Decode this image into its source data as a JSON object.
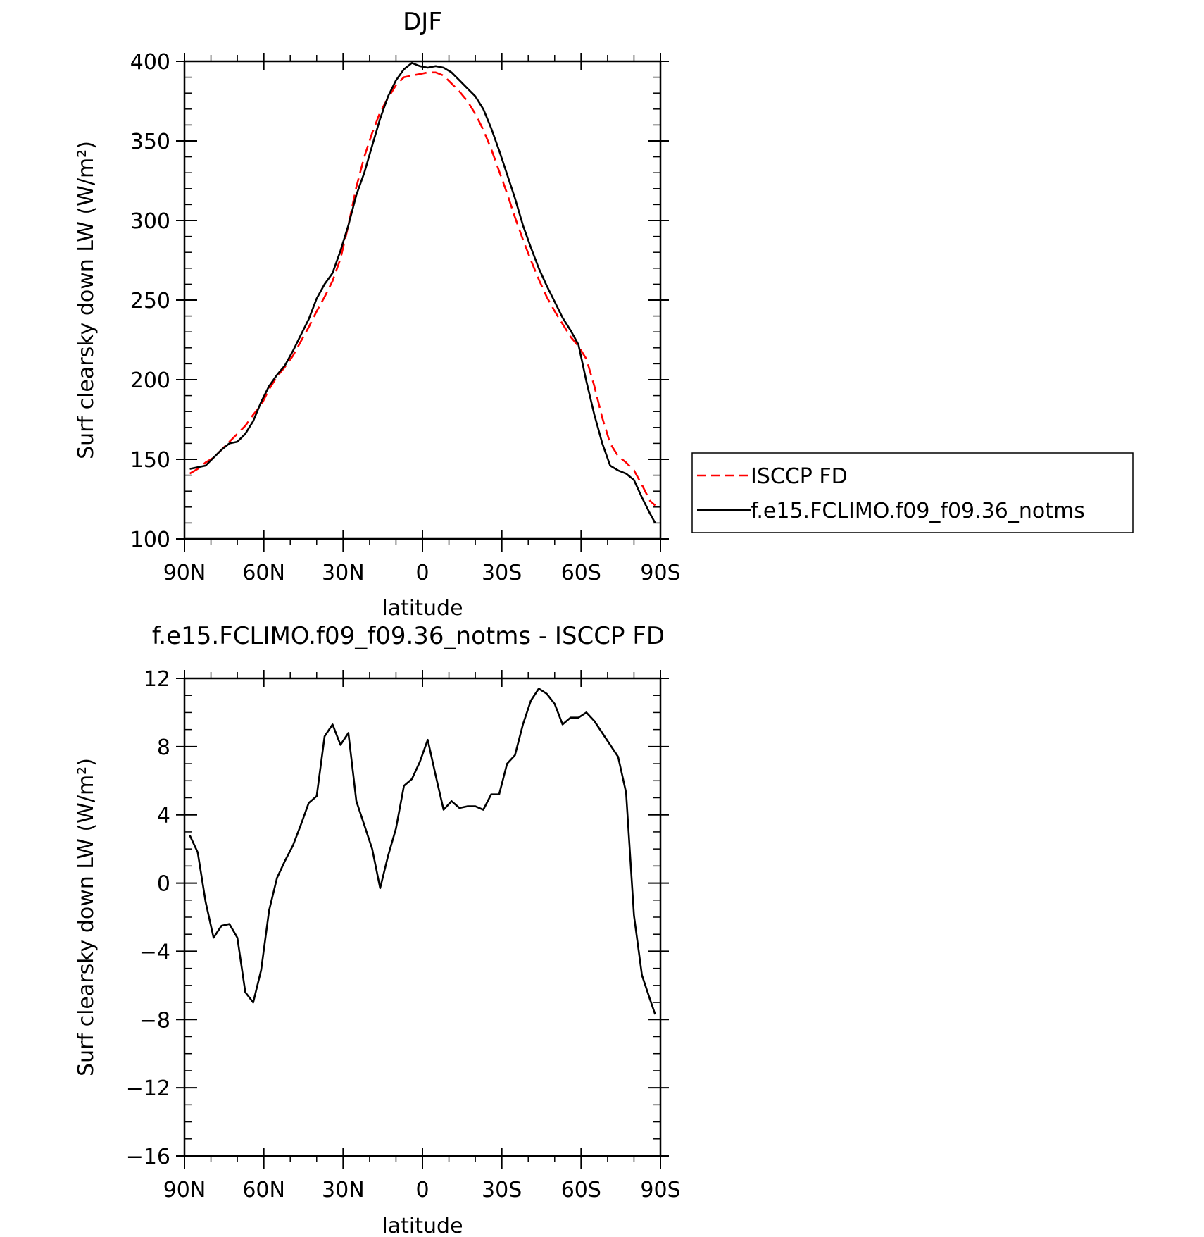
{
  "lat_tick_labels": [
    "90N",
    "60N",
    "30N",
    "0",
    "30S",
    "60S",
    "90S"
  ],
  "chart_data": [
    {
      "type": "line",
      "title": "DJF",
      "xlabel": "latitude",
      "ylabel": "Surf clearsky down LW (W/m²)",
      "xlim": [
        90,
        -90
      ],
      "ylim": [
        100,
        400
      ],
      "yticks": [
        100,
        150,
        200,
        250,
        300,
        350,
        400
      ],
      "ytick_labels": [
        "100",
        "150",
        "200",
        "250",
        "300",
        "350",
        "400"
      ],
      "legend": {
        "placement": "right",
        "entries": [
          "ISCCP FD",
          "f.e15.FCLIMO.f09_f09.36_notms"
        ]
      },
      "series": [
        {
          "name": "ISCCP FD",
          "color": "#ff0000",
          "dash": "dashed",
          "x": [
            88,
            85,
            82,
            79,
            76,
            73,
            70,
            67,
            64,
            61,
            58,
            55,
            52,
            49,
            46,
            43,
            40,
            37,
            34,
            31,
            28,
            25,
            22,
            19,
            16,
            13,
            10,
            7,
            4,
            1,
            -2,
            -5,
            -8,
            -11,
            -14,
            -17,
            -20,
            -23,
            -26,
            -29,
            -32,
            -35,
            -38,
            -41,
            -44,
            -47,
            -50,
            -53,
            -56,
            -59,
            -62,
            -65,
            -68,
            -71,
            -74,
            -77,
            -80,
            -83,
            -86,
            -88
          ],
          "values": [
            141,
            144,
            148,
            151,
            156,
            161,
            166,
            171,
            178,
            184,
            194,
            202,
            208,
            215,
            224,
            233,
            243,
            252,
            262,
            276,
            297,
            321,
            340,
            355,
            368,
            377,
            385,
            390,
            391,
            392,
            393,
            393,
            391,
            386,
            381,
            375,
            367,
            357,
            345,
            331,
            317,
            302,
            288,
            275,
            263,
            252,
            243,
            235,
            227,
            221,
            213,
            196,
            176,
            160,
            152,
            148,
            143,
            134,
            124,
            121
          ]
        },
        {
          "name": "f.e15.FCLIMO.f09_f09.36_notms",
          "color": "#000000",
          "dash": "solid",
          "x": [
            88,
            85,
            82,
            79,
            76,
            73,
            70,
            67,
            64,
            61,
            58,
            55,
            52,
            49,
            46,
            43,
            40,
            37,
            34,
            31,
            28,
            25,
            22,
            19,
            16,
            13,
            10,
            7,
            4,
            1,
            -2,
            -5,
            -8,
            -11,
            -14,
            -17,
            -20,
            -23,
            -26,
            -29,
            -32,
            -35,
            -38,
            -41,
            -44,
            -47,
            -50,
            -53,
            -56,
            -59,
            -62,
            -65,
            -68,
            -71,
            -74,
            -77,
            -80,
            -83,
            -86,
            -88
          ],
          "values": [
            144,
            145,
            146,
            151,
            156,
            160,
            161,
            166,
            174,
            186,
            196,
            203,
            209,
            218,
            228,
            238,
            251,
            260,
            267,
            281,
            297,
            316,
            330,
            347,
            364,
            378,
            388,
            395,
            399,
            397,
            396,
            397,
            396,
            393,
            388,
            383,
            378,
            370,
            358,
            344,
            329,
            314,
            297,
            283,
            270,
            259,
            249,
            239,
            231,
            222,
            199,
            178,
            160,
            146,
            143,
            141,
            137,
            126,
            116,
            110
          ]
        }
      ]
    },
    {
      "type": "line",
      "title": "f.e15.FCLIMO.f09_f09.36_notms - ISCCP FD",
      "xlabel": "latitude",
      "ylabel": "Surf clearsky down LW (W/m²)",
      "xlim": [
        90,
        -90
      ],
      "ylim": [
        -16,
        12
      ],
      "yticks": [
        -16,
        -12,
        -8,
        -4,
        0,
        4,
        8,
        12
      ],
      "ytick_labels": [
        "−16",
        "−12",
        "−8",
        "−4",
        "0",
        "4",
        "8",
        "12"
      ],
      "series": [
        {
          "color": "#000000",
          "dash": "solid",
          "x": [
            88,
            85,
            82,
            79,
            76,
            73,
            70,
            67,
            64,
            61,
            58,
            55,
            52,
            49,
            46,
            43,
            40,
            37,
            34,
            31,
            28,
            25,
            22,
            19,
            16,
            13,
            10,
            7,
            4,
            1,
            -2,
            -5,
            -8,
            -11,
            -14,
            -17,
            -20,
            -23,
            -26,
            -29,
            -32,
            -35,
            -38,
            -41,
            -44,
            -47,
            -50,
            -53,
            -56,
            -59,
            -62,
            -65,
            -68,
            -71,
            -74,
            -77,
            -80,
            -83,
            -86,
            -88
          ],
          "values": [
            2.8,
            1.8,
            -1.1,
            -3.2,
            -2.5,
            -2.4,
            -3.2,
            -6.4,
            -7.0,
            -5.1,
            -1.6,
            0.3,
            1.3,
            2.2,
            3.4,
            4.7,
            5.1,
            8.6,
            9.3,
            8.1,
            8.8,
            4.8,
            3.4,
            2.0,
            -0.3,
            1.6,
            3.2,
            5.7,
            6.1,
            7.1,
            8.4,
            6.3,
            4.3,
            4.8,
            4.4,
            4.5,
            4.5,
            4.3,
            5.2,
            5.2,
            7.0,
            7.5,
            9.3,
            10.7,
            11.4,
            11.1,
            10.5,
            9.3,
            9.7,
            9.7,
            10.0,
            9.5,
            8.8,
            8.1,
            7.4,
            5.3,
            -1.9,
            -5.4,
            -6.8,
            -7.7
          ]
        }
      ]
    }
  ]
}
